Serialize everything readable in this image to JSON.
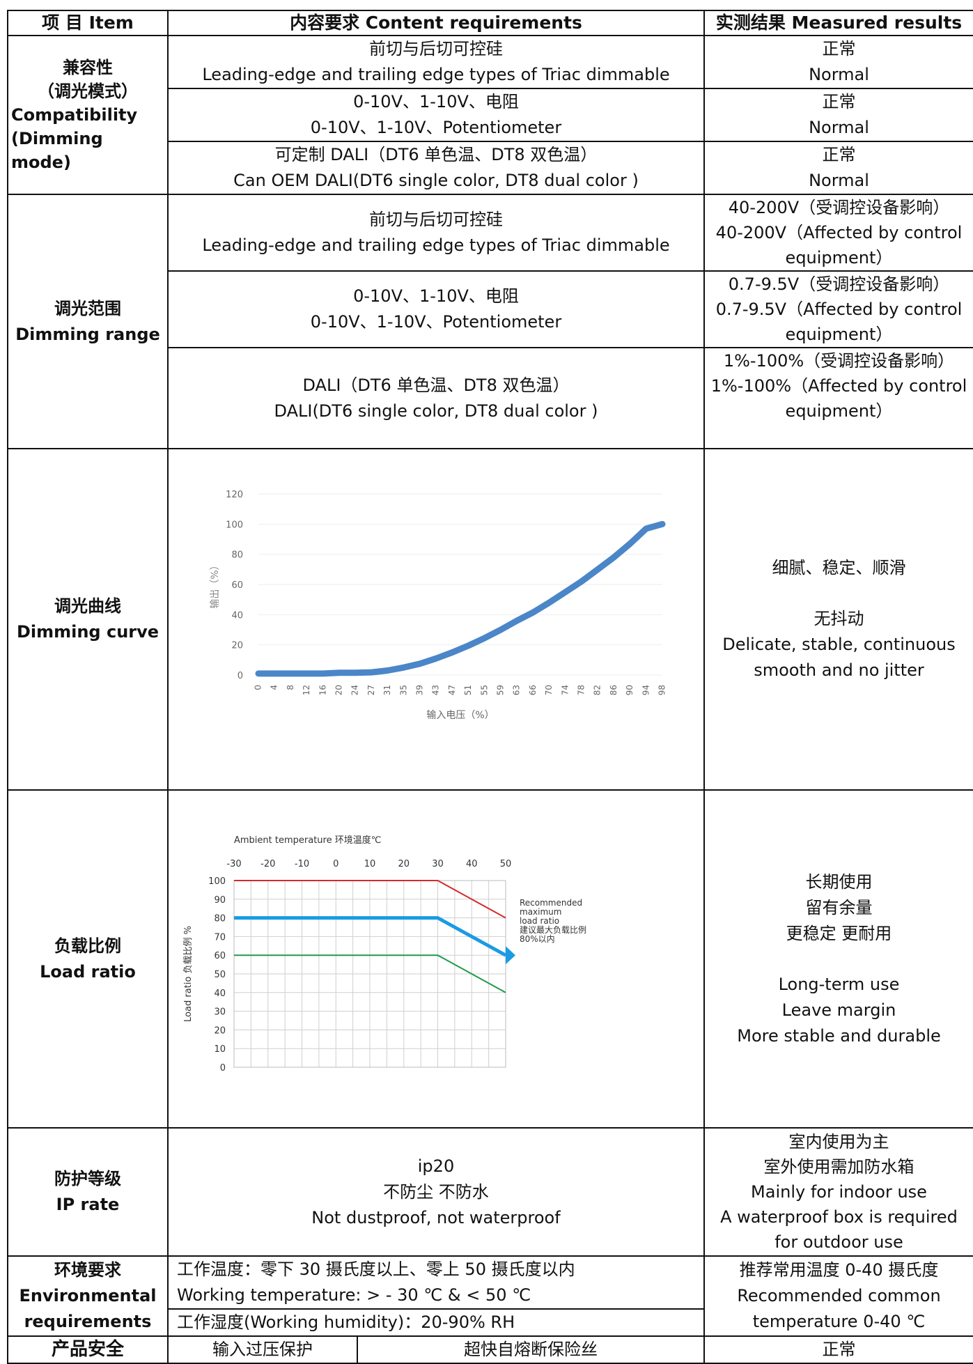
{
  "header": {
    "item": "项 目 Item",
    "content": "内容要求 Content requirements",
    "result": "实测结果 Measured results"
  },
  "compatibility": {
    "label": [
      "兼容性",
      "（调光模式）",
      "Compatibility",
      "(Dimming",
      "mode)"
    ],
    "rows": [
      {
        "content": [
          "前切与后切可控硅",
          "Leading-edge and trailing edge types of Triac dimmable"
        ],
        "result": [
          "正常",
          "Normal"
        ]
      },
      {
        "content": [
          "0-10V、1-10V、电阻",
          "0-10V、1-10V、Potentiometer"
        ],
        "result": [
          "正常",
          "Normal"
        ]
      },
      {
        "content": [
          "可定制 DALI（DT6 单色温、DT8 双色温）",
          "Can OEM DALI(DT6 single color, DT8 dual color )"
        ],
        "result": [
          "正常",
          "Normal"
        ]
      }
    ]
  },
  "dimming_range": {
    "label": [
      "调光范围",
      "Dimming range"
    ],
    "rows": [
      {
        "content": [
          "前切与后切可控硅",
          "Leading-edge and trailing edge types of Triac dimmable"
        ],
        "result": [
          "40-200V（受调控设备影响）",
          "40-200V（Affected by control",
          "equipment）"
        ]
      },
      {
        "content": [
          "0-10V、1-10V、电阻",
          "0-10V、1-10V、Potentiometer"
        ],
        "result": [
          "0.7-9.5V（受调控设备影响）",
          "0.7-9.5V（Affected by control",
          "equipment）"
        ]
      },
      {
        "content": [
          "DALI（DT6 单色温、DT8 双色温）",
          "DALI(DT6 single color, DT8 dual color )"
        ],
        "result": [
          "1%-100%（受调控设备影响）",
          "1%-100%（Affected by control",
          "equipment）"
        ]
      }
    ]
  },
  "dimming_curve": {
    "label": [
      "调光曲线",
      "Dimming curve"
    ],
    "result": [
      "细腻、稳定、顺滑",
      "无抖动",
      "Delicate, stable, continuous",
      "smooth and no jitter"
    ]
  },
  "load_ratio": {
    "label": [
      "负载比例",
      "Load ratio"
    ],
    "result": [
      "长期使用",
      "留有余量",
      "更稳定 更耐用",
      "Long-term use",
      "Leave margin",
      "More stable and durable"
    ]
  },
  "ip_rate": {
    "label": [
      "防护等级",
      "IP rate"
    ],
    "content": [
      "ip20",
      "不防尘 不防水",
      "Not dustproof, not waterproof"
    ],
    "result": [
      "室内使用为主",
      "室外使用需加防水箱",
      "Mainly for indoor use",
      "A waterproof box is required",
      "for outdoor use"
    ]
  },
  "environment": {
    "label": [
      "环境要求",
      "Environmental",
      "requirements"
    ],
    "temp": [
      "工作温度：零下 30 摄氏度以上、零上 50 摄氏度以内",
      "Working temperature: > - 30 ℃ & < 50 ℃"
    ],
    "humidity": "工作湿度(Working humidity)：20-90% RH",
    "result": [
      "推荐常用温度 0-40 摄氏度",
      "Recommended common",
      "temperature 0-40 ℃"
    ]
  },
  "safety": {
    "label": "产品安全",
    "content_a": "输入过压保护",
    "content_b": "超快自熔断保险丝",
    "result": "正常"
  },
  "chart_data": [
    {
      "type": "line",
      "xlabel": "输入电压（%）",
      "ylabel": "输出（%）",
      "ylim": [
        0,
        120
      ],
      "yticks": [
        0,
        20,
        40,
        60,
        80,
        100,
        120
      ],
      "x": [
        0,
        4,
        8,
        12,
        16,
        20,
        24,
        27,
        31,
        35,
        39,
        43,
        47,
        51,
        55,
        59,
        63,
        66,
        70,
        74,
        78,
        82,
        86,
        90,
        94,
        98
      ],
      "series": [
        {
          "values": [
            1,
            1,
            1,
            1,
            1,
            1.5,
            1.5,
            1.8,
            3,
            5,
            7.5,
            11,
            15,
            19.5,
            24.5,
            30,
            36,
            41.5,
            48,
            55,
            62,
            70,
            78,
            87,
            97,
            100
          ],
          "color": "#4a86c8"
        }
      ],
      "grid": true
    },
    {
      "type": "line",
      "title": "Ambient temperature 环境温度℃",
      "ylabel": "Load ratio 负载比例 %",
      "x": [
        -30,
        -20,
        -10,
        0,
        10,
        20,
        30,
        40,
        50
      ],
      "ylim": [
        0,
        100
      ],
      "yticks": [
        0,
        10,
        20,
        30,
        40,
        50,
        60,
        70,
        80,
        90,
        100
      ],
      "series": [
        {
          "x": [
            -30,
            30,
            50
          ],
          "values": [
            100,
            100,
            80
          ],
          "color": "#d42a2a"
        },
        {
          "x": [
            -30,
            30,
            50
          ],
          "values": [
            80,
            80,
            60
          ],
          "color": "#1a9be3"
        },
        {
          "x": [
            -30,
            30,
            50
          ],
          "values": [
            60,
            60,
            40
          ],
          "color": "#1f9a4a"
        }
      ],
      "annotation": [
        "Recommended",
        "maximum",
        "load ratio",
        "建议最大负载比例",
        "80%以内"
      ],
      "grid": true
    }
  ]
}
